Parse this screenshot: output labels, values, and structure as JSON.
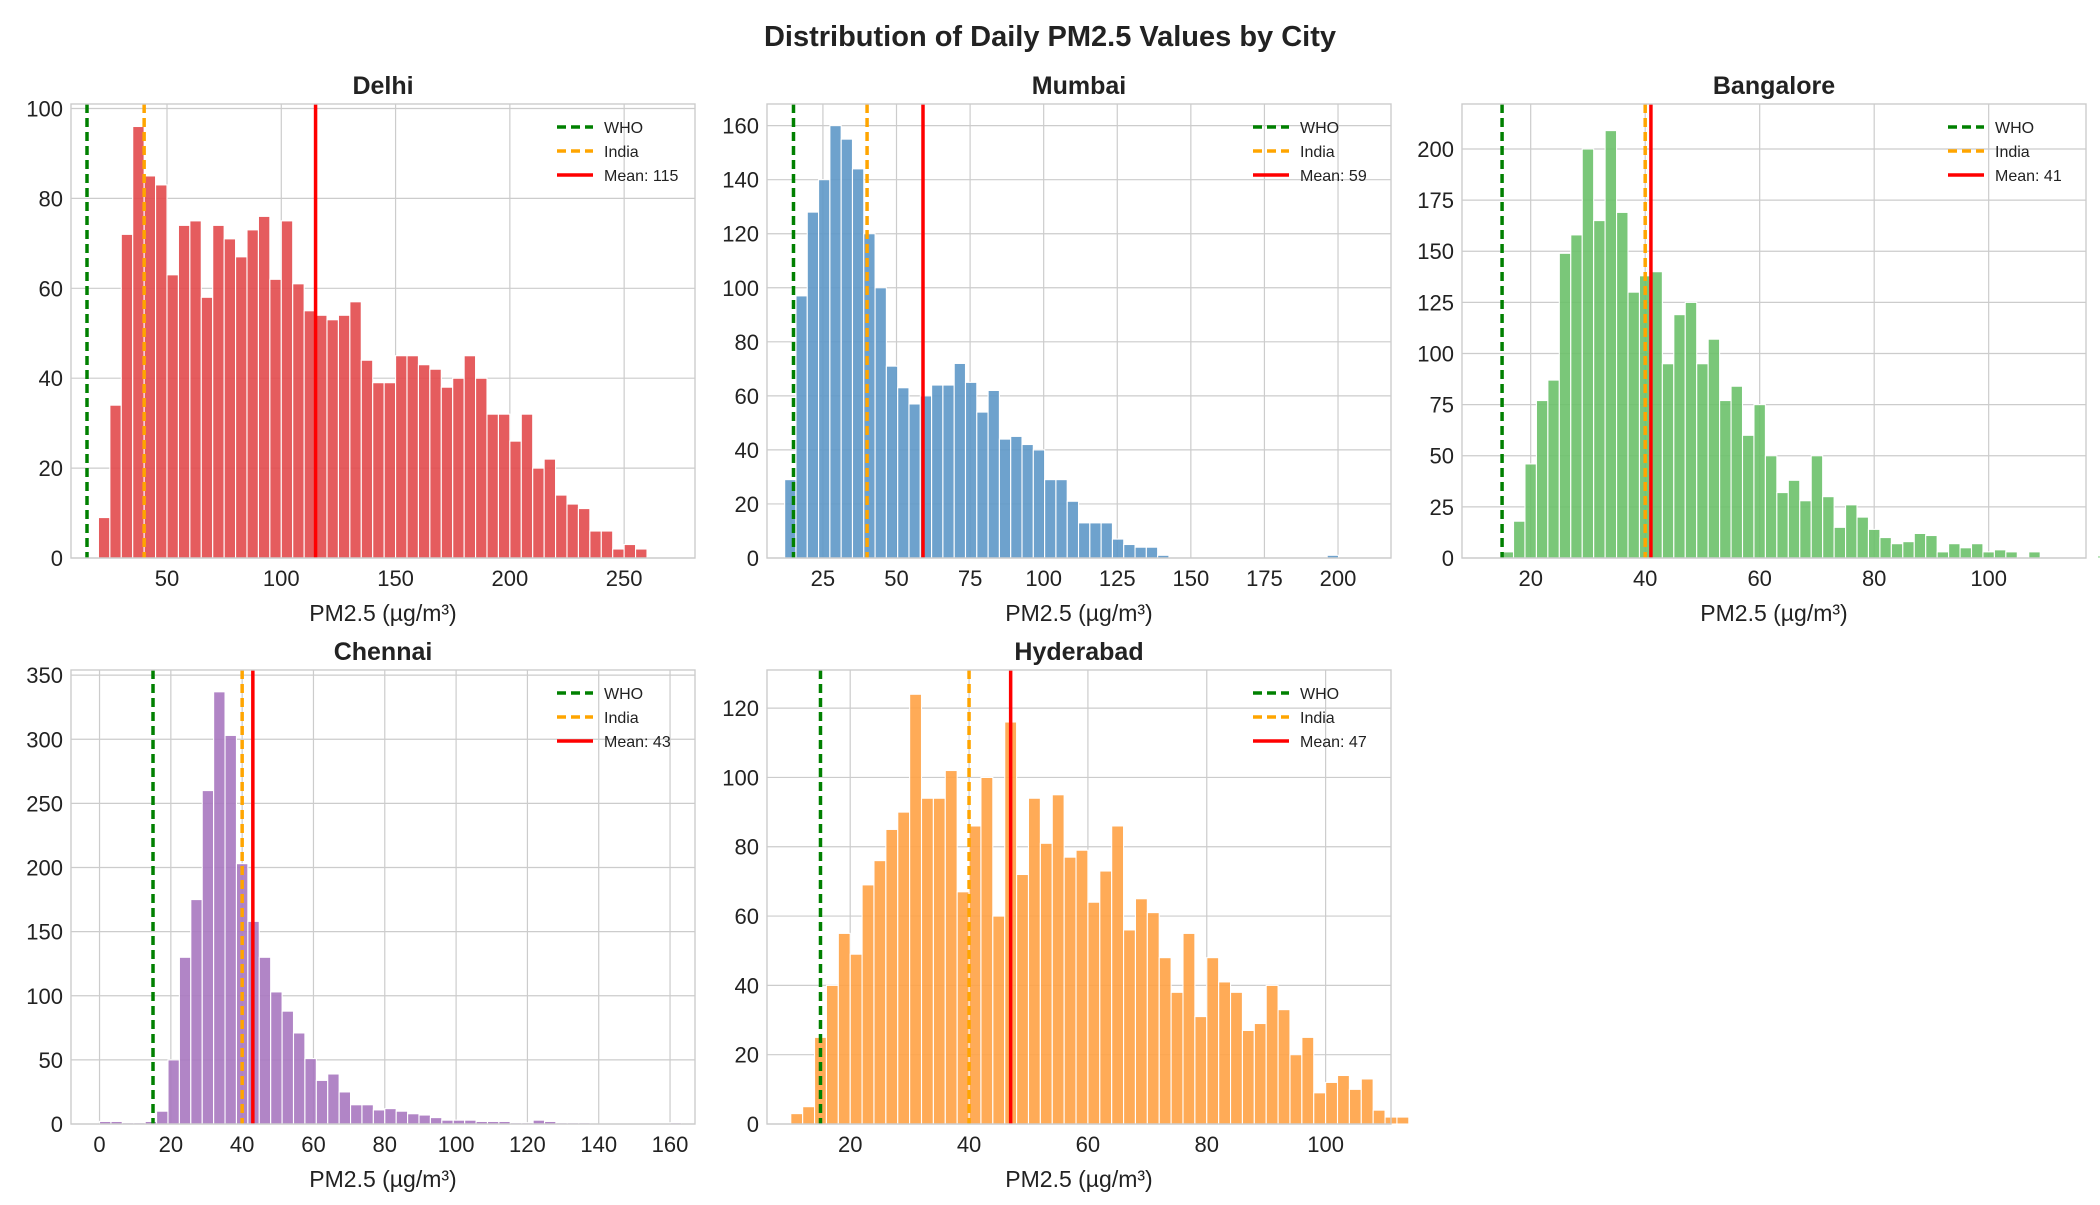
{
  "figure_title": "Distribution of Daily PM2.5 Values by City",
  "colors": {
    "who": "#008000",
    "india": "#FFA500",
    "mean": "#FF0000",
    "grid": "#cccccc",
    "axis": "#cccccc"
  },
  "chart_data": [
    {
      "type": "bar",
      "title": "Delhi",
      "xlabel": "PM2.5 (µg/m³)",
      "ylabel": "",
      "color": "#E24A4D",
      "xlim": [
        8,
        281
      ],
      "ylim": [
        0,
        101
      ],
      "xticks": [
        50,
        100,
        150,
        200,
        250
      ],
      "yticks": [
        0,
        20,
        40,
        60,
        80,
        100
      ],
      "bin_start": 20,
      "bin_width": 5,
      "values": [
        9,
        34,
        72,
        96,
        85,
        83,
        63,
        74,
        75,
        58,
        74,
        71,
        67,
        73,
        76,
        62,
        75,
        61,
        55,
        54,
        53,
        54,
        57,
        44,
        39,
        39,
        45,
        45,
        43,
        42,
        38,
        40,
        45,
        40,
        32,
        32,
        26,
        32,
        20,
        22,
        14,
        12,
        11,
        6,
        6,
        2,
        3,
        2
      ],
      "lines": {
        "who": 15,
        "india": 40,
        "mean": 115
      },
      "legend": [
        "WHO",
        "India",
        "Mean: 115"
      ]
    },
    {
      "type": "bar",
      "title": "Mumbai",
      "xlabel": "PM2.5 (µg/m³)",
      "ylabel": "",
      "color": "#5E98C8",
      "xlim": [
        6,
        218
      ],
      "ylim": [
        0,
        168
      ],
      "xticks": [
        25,
        50,
        75,
        100,
        125,
        150,
        175,
        200
      ],
      "yticks": [
        0,
        20,
        40,
        60,
        80,
        100,
        120,
        140,
        160
      ],
      "bin_start": 12,
      "bin_width": 3.84,
      "values": [
        29,
        97,
        128,
        140,
        160,
        155,
        144,
        120,
        100,
        71,
        63,
        57,
        60,
        64,
        64,
        72,
        65,
        54,
        62,
        44,
        45,
        42,
        40,
        29,
        29,
        21,
        13,
        13,
        13,
        7,
        5,
        4,
        4,
        1,
        0,
        0,
        0,
        0,
        0,
        0,
        0,
        0,
        0,
        0,
        0,
        0,
        0,
        0,
        1
      ],
      "lines": {
        "who": 15,
        "india": 40,
        "mean": 59
      },
      "legend": [
        "WHO",
        "India",
        "Mean: 59"
      ]
    },
    {
      "type": "bar",
      "title": "Bangalore",
      "xlabel": "PM2.5 (µg/m³)",
      "ylabel": "",
      "color": "#6CC16A",
      "xlim": [
        8,
        117
      ],
      "ylim": [
        0,
        222
      ],
      "xticks": [
        20,
        40,
        60,
        80,
        100
      ],
      "yticks": [
        0,
        25,
        50,
        75,
        100,
        125,
        150,
        175,
        200
      ],
      "bin_start": 15,
      "bin_width": 2,
      "values": [
        3,
        18,
        46,
        77,
        87,
        149,
        158,
        200,
        165,
        209,
        169,
        130,
        138,
        140,
        95,
        119,
        125,
        95,
        107,
        77,
        84,
        60,
        75,
        50,
        32,
        38,
        28,
        50,
        30,
        15,
        26,
        20,
        14,
        10,
        7,
        8,
        12,
        11,
        3,
        7,
        5,
        7,
        3,
        4,
        3,
        0,
        3,
        0,
        0,
        0,
        0,
        0,
        1
      ],
      "lines": {
        "who": 15,
        "india": 40,
        "mean": 41
      },
      "legend": [
        "WHO",
        "India",
        "Mean: 41"
      ]
    },
    {
      "type": "bar",
      "title": "Chennai",
      "xlabel": "PM2.5 (µg/m³)",
      "ylabel": "",
      "color": "#A878C0",
      "xlim": [
        -8,
        167
      ],
      "ylim": [
        0,
        354
      ],
      "xticks": [
        0,
        20,
        40,
        60,
        80,
        100,
        120,
        140,
        160
      ],
      "yticks": [
        0,
        50,
        100,
        150,
        200,
        250,
        300,
        350
      ],
      "bin_start": 0,
      "bin_width": 3.2,
      "values": [
        2,
        2,
        1,
        1,
        2,
        10,
        50,
        130,
        175,
        260,
        337,
        303,
        203,
        158,
        130,
        103,
        88,
        71,
        51,
        34,
        39,
        25,
        15,
        15,
        11,
        12,
        10,
        8,
        7,
        5,
        3,
        3,
        3,
        2,
        2,
        2,
        1,
        1,
        3,
        2,
        1,
        1,
        1,
        0,
        0,
        0,
        0,
        0,
        0,
        0,
        1
      ],
      "lines": {
        "who": 15,
        "india": 40,
        "mean": 43
      },
      "legend": [
        "WHO",
        "India",
        "Mean: 43"
      ]
    },
    {
      "type": "bar",
      "title": "Hyderabad",
      "xlabel": "PM2.5 (µg/m³)",
      "ylabel": "",
      "color": "#FFA245",
      "xlim": [
        6,
        111
      ],
      "ylim": [
        0,
        131
      ],
      "xticks": [
        20,
        40,
        60,
        80,
        100
      ],
      "yticks": [
        0,
        20,
        40,
        60,
        80,
        100,
        120
      ],
      "bin_start": 10,
      "bin_width": 2,
      "values": [
        3,
        5,
        25,
        40,
        55,
        49,
        69,
        76,
        85,
        90,
        124,
        94,
        94,
        102,
        67,
        86,
        100,
        60,
        116,
        72,
        94,
        81,
        95,
        77,
        79,
        64,
        73,
        86,
        56,
        65,
        61,
        48,
        38,
        55,
        31,
        48,
        41,
        38,
        27,
        29,
        40,
        33,
        20,
        25,
        9,
        12,
        14,
        10,
        13,
        4,
        2,
        2
      ],
      "lines": {
        "who": 15,
        "india": 40,
        "mean": 47
      },
      "legend": [
        "WHO",
        "India",
        "Mean: 47"
      ]
    }
  ]
}
